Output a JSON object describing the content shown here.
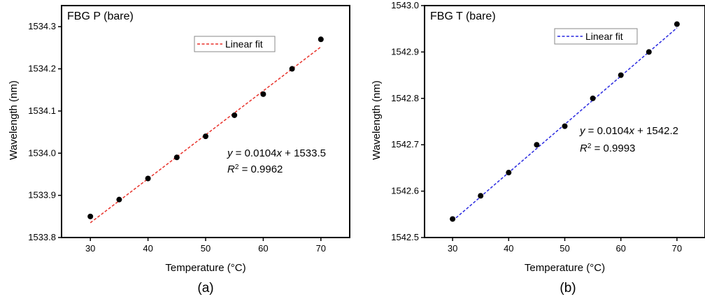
{
  "chart_data": [
    {
      "type": "scatter",
      "title": "FBG P (bare)",
      "caption": "(a)",
      "xlabel": "Temperature (°C)",
      "ylabel": "Wavelength (nm)",
      "xlim": [
        25,
        75
      ],
      "ylim": [
        1533.8,
        1534.35
      ],
      "xticks": [
        "30",
        "40",
        "50",
        "60",
        "70"
      ],
      "yticks": [
        "1533.8",
        "1533.9",
        "1534.0",
        "1534.1",
        "1534.2",
        "1534.3"
      ],
      "x": [
        30,
        35,
        40,
        45,
        50,
        55,
        60,
        65,
        70
      ],
      "y": [
        1533.85,
        1533.89,
        1533.94,
        1533.99,
        1534.04,
        1534.09,
        1534.14,
        1534.2,
        1534.27
      ],
      "fit": {
        "name": "Linear fit",
        "color": "#e8312a",
        "x0": 30,
        "y0": 1533.835,
        "x1": 70,
        "y1": 1534.252
      },
      "eq_line1": "y = 0.0104x + 1533.5",
      "eq_line2": "R2 = 0.9962",
      "eq_y_var": "y",
      "eq_y_rest": " = 0.0104",
      "eq_x_var": "x",
      "eq_const": " + 1533.5",
      "eq_r": "R",
      "eq_r_sup": "2",
      "eq_r_val": " = 0.9962",
      "legend_position": "top-right",
      "grid": false
    },
    {
      "type": "scatter",
      "title": "FBG T (bare)",
      "caption": "(b)",
      "xlabel": "Temperature (°C)",
      "ylabel": "Wavelength (nm)",
      "xlim": [
        25,
        75
      ],
      "ylim": [
        1542.5,
        1543.0
      ],
      "xticks": [
        "30",
        "40",
        "50",
        "60",
        "70"
      ],
      "yticks": [
        "1542.5",
        "1542.6",
        "1542.7",
        "1542.8",
        "1542.9",
        "1543.0"
      ],
      "x": [
        30,
        35,
        40,
        45,
        50,
        55,
        60,
        65,
        70
      ],
      "y": [
        1542.54,
        1542.59,
        1542.64,
        1542.7,
        1542.74,
        1542.8,
        1542.85,
        1542.9,
        1542.96
      ],
      "fit": {
        "name": "Linear fit",
        "color": "#2828e0",
        "x0": 30,
        "y0": 1542.536,
        "x1": 70,
        "y1": 1542.952
      },
      "eq_line1": "y = 0.0104x + 1542.2",
      "eq_line2": "R2 = 0.9993",
      "eq_y_var": "y",
      "eq_y_rest": " = 0.0104",
      "eq_x_var": "x",
      "eq_const": " + 1542.2",
      "eq_r": "R",
      "eq_r_sup": "2",
      "eq_r_val": " = 0.9993",
      "legend_position": "top-right",
      "grid": false
    }
  ]
}
